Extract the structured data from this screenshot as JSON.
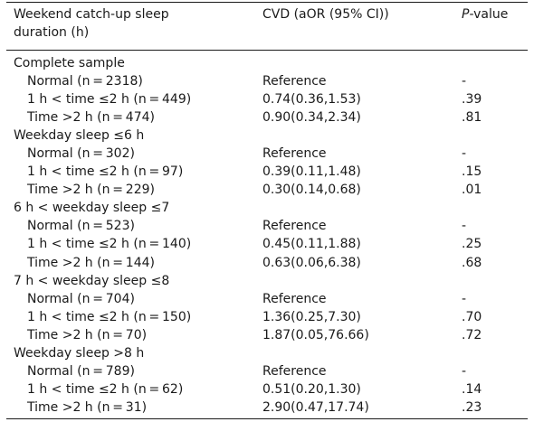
{
  "header": {
    "col1_line1": "Weekend catch-up sleep",
    "col1_line2": "duration (h)",
    "col2": "CVD (aOR (95% CI))",
    "col3_italic": "P",
    "col3_rest": "-value"
  },
  "groups": [
    {
      "label": "Complete sample",
      "rows": [
        {
          "label": "Normal (n = 2318)",
          "aor": "Reference",
          "p": "-"
        },
        {
          "label": "1 h  < time ≤2 h (n = 449)",
          "aor": "0.74(0.36,1.53)",
          "p": ".39"
        },
        {
          "label": "Time  >2 h (n = 474)",
          "aor": "0.90(0.34,2.34)",
          "p": ".81"
        }
      ]
    },
    {
      "label": "Weekday sleep ≤6 h",
      "rows": [
        {
          "label": "Normal (n = 302)",
          "aor": "Reference",
          "p": "-"
        },
        {
          "label": "1 h  < time ≤2 h (n = 97)",
          "aor": "0.39(0.11,1.48)",
          "p": ".15"
        },
        {
          "label": "Time  >2 h (n = 229)",
          "aor": "0.30(0.14,0.68)",
          "p": ".01"
        }
      ]
    },
    {
      "label": "6 h  < weekday sleep ≤7",
      "rows": [
        {
          "label": "Normal (n = 523)",
          "aor": "Reference",
          "p": "-"
        },
        {
          "label": "1 h  < time ≤2 h (n = 140)",
          "aor": "0.45(0.11,1.88)",
          "p": ".25"
        },
        {
          "label": "Time  >2 h (n = 144)",
          "aor": "0.63(0.06,6.38)",
          "p": ".68"
        }
      ]
    },
    {
      "label": "7 h  < weekday sleep ≤8",
      "rows": [
        {
          "label": "Normal (n = 704)",
          "aor": "Reference",
          "p": "-"
        },
        {
          "label": "1 h  < time ≤2 h (n = 150)",
          "aor": "1.36(0.25,7.30)",
          "p": ".70"
        },
        {
          "label": "Time  >2 h (n = 70)",
          "aor": "1.87(0.05,76.66)",
          "p": ".72"
        }
      ]
    },
    {
      "label": "Weekday sleep  >8 h",
      "rows": [
        {
          "label": "Normal (n = 789)",
          "aor": "Reference",
          "p": "-"
        },
        {
          "label": "1 h  < time ≤2 h (n = 62)",
          "aor": "0.51(0.20,1.30)",
          "p": ".14"
        },
        {
          "label": "Time  >2 h (n = 31)",
          "aor": "2.90(0.47,17.74)",
          "p": ".23"
        }
      ]
    }
  ]
}
